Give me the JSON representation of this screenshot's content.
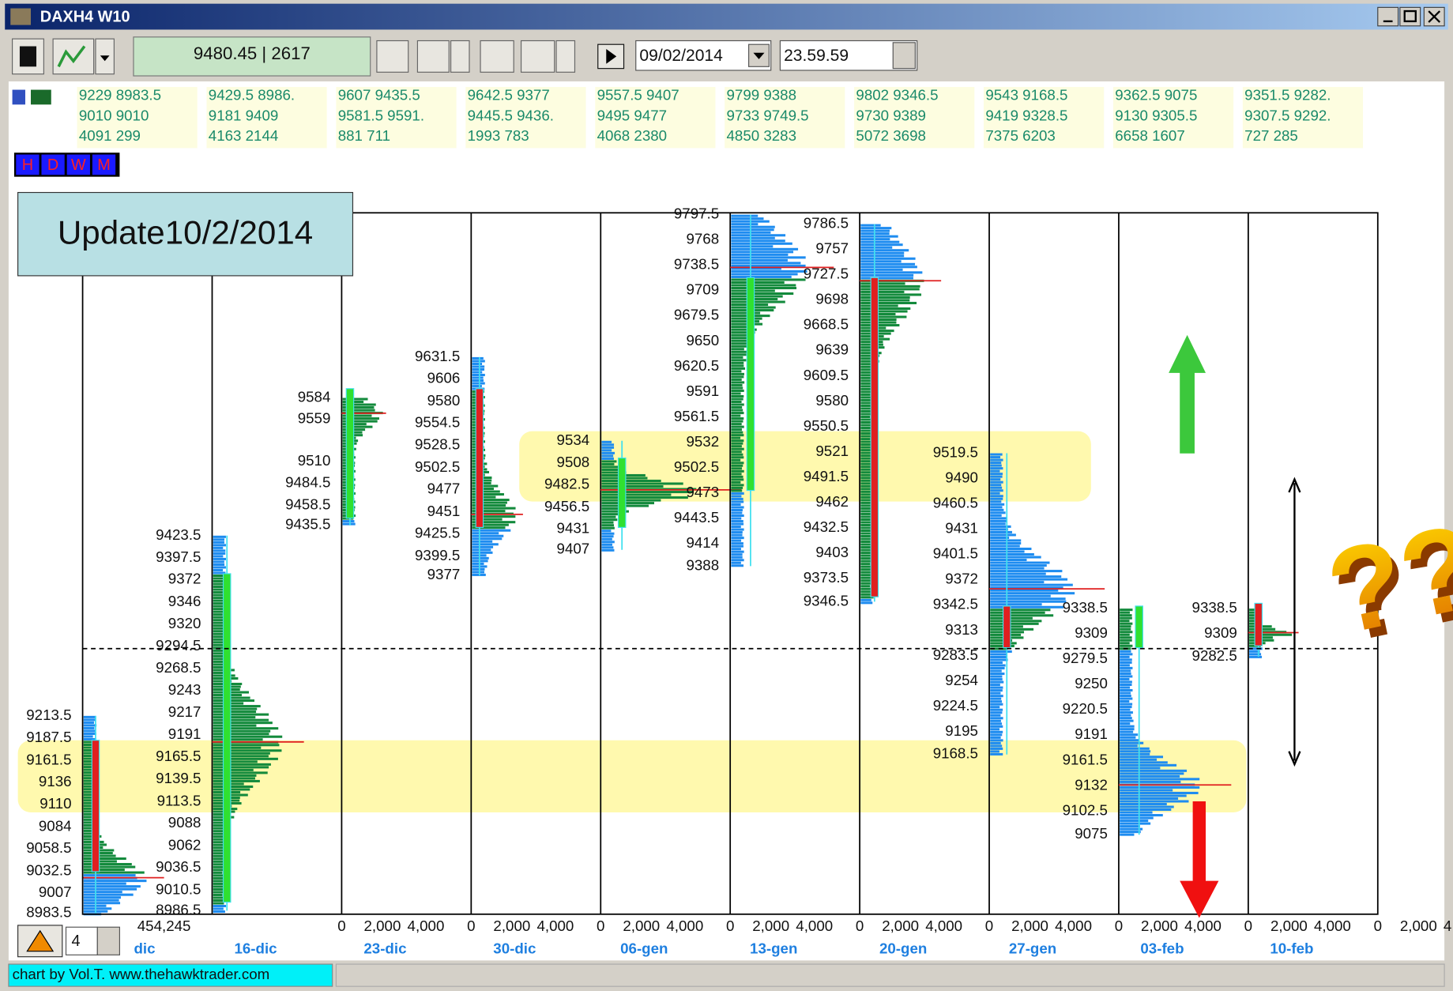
{
  "window": {
    "title": "DAXH4 W10"
  },
  "toolbar": {
    "quote": "9480.45 | 2617",
    "date": "09/02/2014",
    "time": "23.59.59"
  },
  "stats": [
    [
      "9229 8983.5",
      "9010 9010",
      "4091 299"
    ],
    [
      "9429.5 8986.",
      "9181 9409",
      "4163 2144"
    ],
    [
      "9607 9435.5",
      "9581.5 9591.",
      "881 711"
    ],
    [
      "9642.5 9377",
      "9445.5 9436.",
      "1993 783"
    ],
    [
      "9557.5 9407",
      "9495 9477",
      "4068 2380"
    ],
    [
      "9799 9388",
      "9733 9749.5",
      "4850 3283"
    ],
    [
      "9802 9346.5",
      "9730 9389",
      "5072 3698"
    ],
    [
      "9543 9168.5",
      "9419 9328.5",
      "7375 6203"
    ],
    [
      "9362.5 9075",
      "9130 9305.5",
      "6658 1607"
    ],
    [
      "9351.5 9282.",
      "9307.5 9292.",
      "727 285"
    ]
  ],
  "period_buttons": [
    "H",
    "D",
    "W",
    "M"
  ],
  "annotation": "Update10/2/2014",
  "weeks": [
    {
      "label": "dic",
      "axis": [
        "454,245"
      ],
      "prices": [
        9213.5,
        9187.5,
        9161.5,
        9136,
        9110,
        9084,
        9058.5,
        9032.5,
        9007,
        8983.5
      ]
    },
    {
      "label": "16-dic",
      "axis": [
        "0",
        "2,000",
        "4,000"
      ],
      "prices": [
        9423.5,
        9397.5,
        9372,
        9346,
        9320,
        9294.5,
        9268.5,
        9243,
        9217,
        9191,
        9165.5,
        9139.5,
        9113.5,
        9088,
        9062,
        9036.5,
        9010.5,
        8986.5
      ]
    },
    {
      "label": "23-dic",
      "axis": [
        "0",
        "2,000",
        "4,000"
      ],
      "prices": [
        9584,
        9559,
        9510,
        9484.5,
        9458.5,
        9435.5
      ]
    },
    {
      "label": "30-dic",
      "axis": [
        "0",
        "2,000",
        "4,000"
      ],
      "prices": [
        9631.5,
        9606,
        9580,
        9554.5,
        9528.5,
        9502.5,
        9477,
        9451,
        9425.5,
        9399.5,
        9377
      ]
    },
    {
      "label": "06-gen",
      "axis": [
        "0",
        "2,000",
        "4,000"
      ],
      "prices": [
        9534,
        9508,
        9482.5,
        9456.5,
        9431,
        9407
      ]
    },
    {
      "label": "13-gen",
      "axis": [
        "0",
        "2,000",
        "4,000"
      ],
      "prices": [
        9797.5,
        9768,
        9738.5,
        9709,
        9679.5,
        9650,
        9620.5,
        9591,
        9561.5,
        9532,
        9502.5,
        9473,
        9443.5,
        9414,
        9388
      ]
    },
    {
      "label": "20-gen",
      "axis": [
        "0",
        "2,000",
        "4,000"
      ],
      "prices": [
        9786.5,
        9757,
        9727.5,
        9698,
        9668.5,
        9639,
        9609.5,
        9580,
        9550.5,
        9521,
        9491.5,
        9462,
        9432.5,
        9403,
        9373.5,
        9346.5
      ]
    },
    {
      "label": "27-gen",
      "axis": [
        "0",
        "2,000",
        "4,000"
      ],
      "prices": [
        9519.5,
        9490,
        9460.5,
        9431,
        9401.5,
        9372,
        9342.5,
        9313,
        9283.5,
        9254,
        9224.5,
        9195,
        9168.5
      ]
    },
    {
      "label": "03-feb",
      "axis": [
        "0",
        "2,000",
        "4,000"
      ],
      "prices": [
        9338.5,
        9309,
        9279.5,
        9250,
        9220.5,
        9191,
        9161.5,
        9132,
        9102.5,
        9075
      ]
    },
    {
      "label": "10-feb",
      "axis": [
        "0",
        "2,000",
        "4,000"
      ],
      "prices": [
        9338.5,
        9309,
        9282.5
      ]
    }
  ],
  "spinner": "4",
  "footer": "chart by Vol.T. www.thehawktrader.com"
}
